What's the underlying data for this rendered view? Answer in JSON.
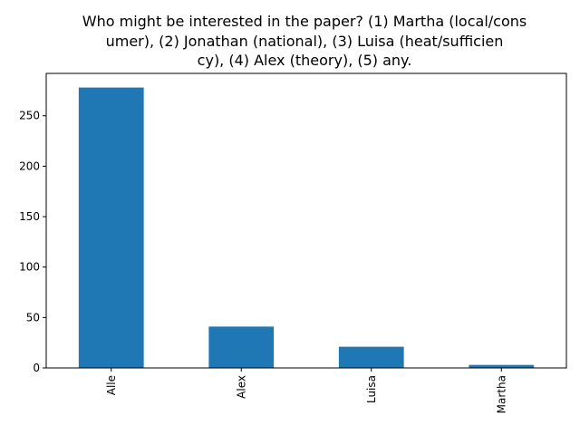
{
  "chart_data": {
    "type": "bar",
    "title_lines": [
      "Who might be interested in the paper? (1) Martha (local/cons",
      "umer), (2) Jonathan (national), (3) Luisa (heat/sufficien",
      "cy), (4) Alex (theory), (5) any."
    ],
    "categories": [
      "Alle",
      "Alex",
      "Luisa",
      "Martha"
    ],
    "values": [
      278,
      41,
      21,
      3
    ],
    "xlabel": "",
    "ylabel": "",
    "ylim": [
      0,
      292
    ],
    "yticks": [
      0,
      50,
      100,
      150,
      200,
      250
    ],
    "bar_color": "#1f77b4",
    "grid": false,
    "legend": "none"
  }
}
